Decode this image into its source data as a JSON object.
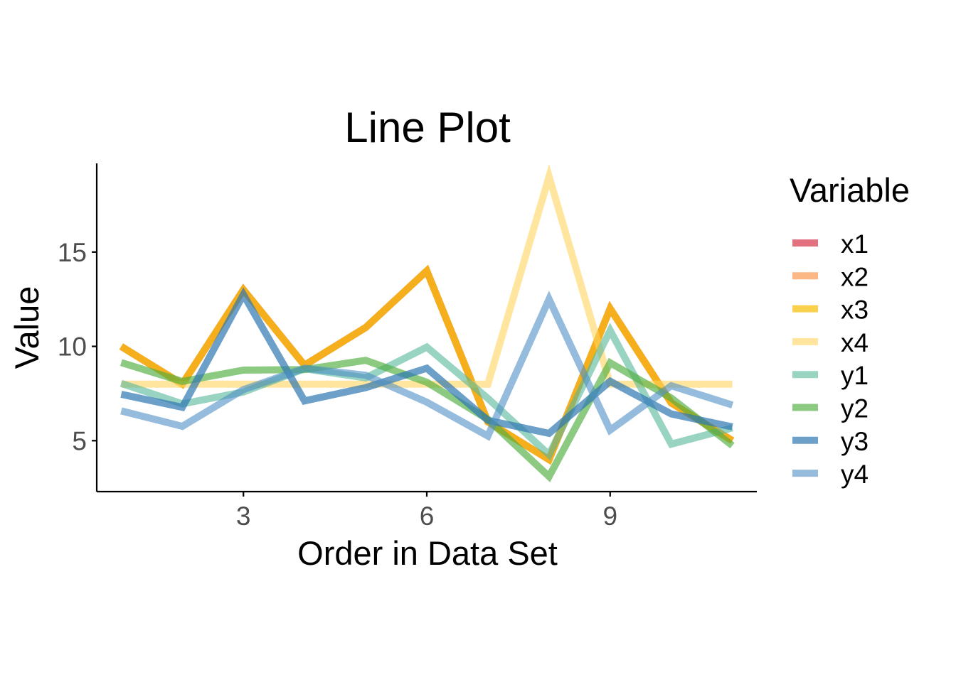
{
  "chart_data": {
    "type": "line",
    "title": "Line Plot",
    "xlabel": "Order in Data Set",
    "ylabel": "Value",
    "xlim": [
      0.6,
      11.4
    ],
    "ylim": [
      2.3,
      19.7
    ],
    "xticks": [
      3,
      6,
      9
    ],
    "yticks": [
      5,
      10,
      15
    ],
    "legend_title": "Variable",
    "legend_position": "right",
    "grid": false,
    "x": [
      1,
      2,
      3,
      4,
      5,
      6,
      7,
      8,
      9,
      10,
      11
    ],
    "series": [
      {
        "name": "x1",
        "color": "#D73449",
        "opacity": 0.7,
        "values": [
          10,
          8,
          13,
          9,
          11,
          14,
          6,
          4,
          12,
          7,
          5
        ]
      },
      {
        "name": "x2",
        "color": "#F99A50",
        "opacity": 0.7,
        "values": [
          10,
          8,
          13,
          9,
          11,
          14,
          6,
          4,
          12,
          7,
          5
        ]
      },
      {
        "name": "x3",
        "color": "#F6BE00",
        "opacity": 0.7,
        "values": [
          10,
          8,
          13,
          9,
          11,
          14,
          6,
          4,
          12,
          7,
          5
        ]
      },
      {
        "name": "x4",
        "color": "#FFD35C",
        "opacity": 0.6,
        "values": [
          8,
          8,
          8,
          8,
          8,
          8,
          8,
          19,
          8,
          8,
          8
        ]
      },
      {
        "name": "y1",
        "color": "#55B597",
        "opacity": 0.6,
        "values": [
          8.04,
          6.95,
          7.58,
          8.81,
          8.33,
          9.96,
          7.24,
          4.26,
          10.84,
          4.82,
          5.68
        ]
      },
      {
        "name": "y2",
        "color": "#4EAE3F",
        "opacity": 0.65,
        "values": [
          9.14,
          8.14,
          8.74,
          8.77,
          9.26,
          8.1,
          6.13,
          3.1,
          9.13,
          7.26,
          4.74
        ]
      },
      {
        "name": "y3",
        "color": "#2D78B2",
        "opacity": 0.7,
        "values": [
          7.46,
          6.77,
          12.74,
          7.11,
          7.81,
          8.84,
          6.08,
          5.39,
          8.15,
          6.42,
          5.73
        ]
      },
      {
        "name": "y4",
        "color": "#4E8FC4",
        "opacity": 0.6,
        "values": [
          6.58,
          5.76,
          7.71,
          8.84,
          8.47,
          7.04,
          5.25,
          12.5,
          5.56,
          7.91,
          6.89
        ]
      }
    ]
  }
}
